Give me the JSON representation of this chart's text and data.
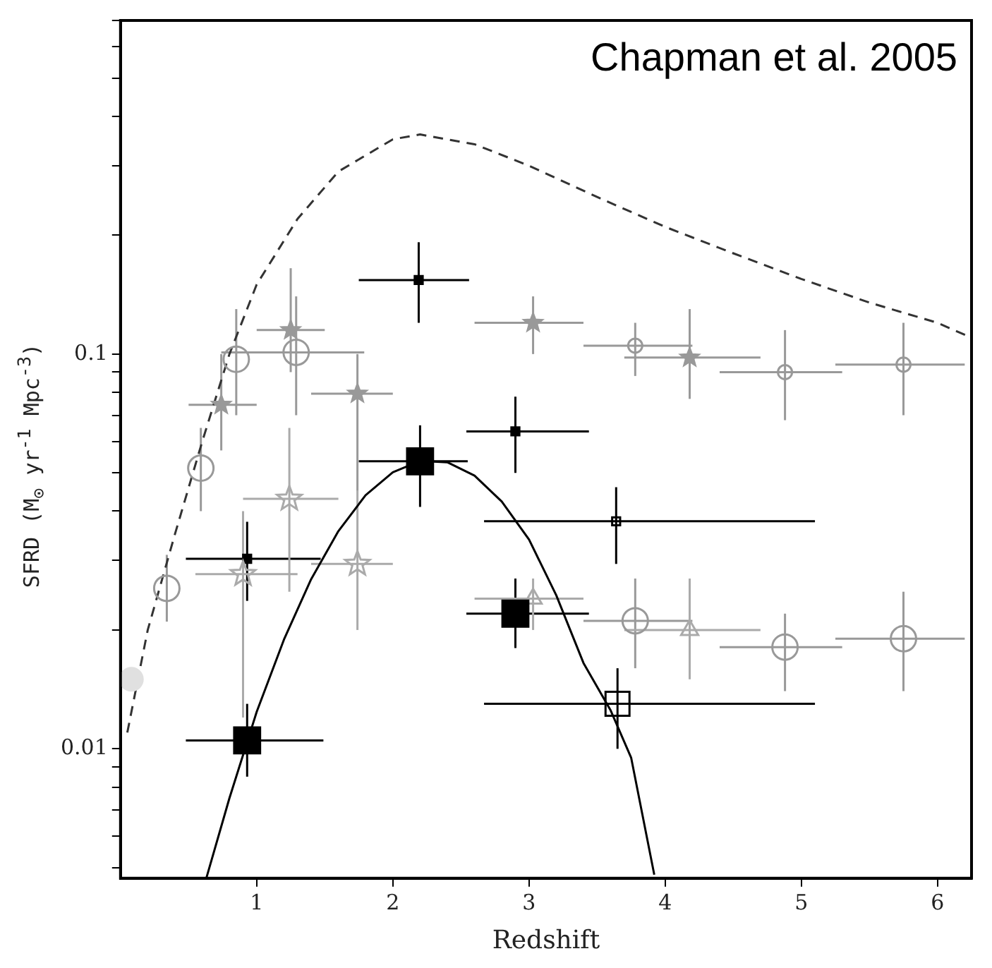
{
  "chart_data": {
    "type": "scatter",
    "xlabel": "Redshift",
    "ylabel": "SFRD (M$_{⊙}$ yr$^{-1}$ Mpc$^{-3}$)",
    "annotations": [
      "Chapman et al. 2005"
    ],
    "log": "y",
    "grid": false,
    "legend": false,
    "xlim": [
      0,
      6.25
    ],
    "ylim": [
      0.0047,
      0.7
    ],
    "xticks": [
      1,
      2,
      3,
      4,
      5,
      6
    ],
    "yticks": [
      {
        "value": 0.005,
        "label": null
      },
      {
        "value": 0.006,
        "label": null
      },
      {
        "value": 0.007,
        "label": null
      },
      {
        "value": 0.008,
        "label": null
      },
      {
        "value": 0.009,
        "label": null
      },
      0.01,
      {
        "value": 0.02,
        "label": null
      },
      {
        "value": 0.03,
        "label": null
      },
      {
        "value": 0.04,
        "label": null
      },
      {
        "value": 0.05,
        "label": null
      },
      {
        "value": 0.06,
        "label": null
      },
      {
        "value": 0.07,
        "label": null
      },
      {
        "value": 0.08,
        "label": null
      },
      {
        "value": 0.09,
        "label": null
      },
      0.1,
      {
        "value": 0.2,
        "label": null
      },
      {
        "value": 0.3,
        "label": null
      },
      {
        "value": 0.4,
        "label": null
      },
      {
        "value": 0.5,
        "label": null
      },
      {
        "value": 0.6,
        "label": null
      },
      {
        "value": 0.7,
        "label": null
      }
    ],
    "series": [
      {
        "color": "#000000",
        "marker": "square",
        "x": [
          0.93,
          2.2,
          2.9
        ],
        "values": [
          0.0105,
          0.0535,
          0.022
        ],
        "errors": [
          [
            0.0085,
            0.013
          ],
          [
            0.041,
            0.066
          ],
          [
            0.018,
            0.027
          ]
        ],
        "xerrors": [
          [
            0.48,
            1.49
          ],
          [
            1.75,
            2.55
          ],
          [
            2.54,
            3.44
          ]
        ]
      },
      {
        "color": "#000000",
        "marker": "square",
        "x": [
          0.93,
          2.19,
          2.9
        ],
        "values": [
          0.0303,
          0.154,
          0.0637
        ],
        "errors": [
          [
            0.0237,
            0.0376
          ],
          [
            0.12,
            0.192
          ],
          [
            0.05,
            0.078
          ]
        ],
        "xerrors": [
          [
            0.48,
            1.47
          ],
          [
            1.75,
            2.56
          ],
          [
            2.54,
            3.44
          ]
        ]
      },
      {
        "color": "#000000",
        "marker": "square",
        "x": [
          3.64
        ],
        "values": [
          0.0377
        ],
        "errors": [
          [
            0.0294,
            0.046
          ]
        ],
        "xerrors": [
          [
            2.67,
            5.1
          ]
        ]
      },
      {
        "color": "#000000",
        "marker": "square",
        "x": [
          3.65
        ],
        "values": [
          0.013
        ],
        "errors": [
          [
            0.01,
            0.016
          ]
        ],
        "xerrors": [
          [
            2.67,
            5.1
          ]
        ]
      },
      {
        "color": "#999999",
        "marker": "circle",
        "x": [
          0.34,
          0.59,
          0.85,
          1.29,
          3.78,
          4.88,
          5.75
        ],
        "values": [
          0.0255,
          0.0514,
          0.097,
          0.101,
          0.0211,
          0.0181,
          0.019
        ],
        "errors": [
          [
            0.021,
            0.031
          ],
          [
            0.04,
            0.065
          ],
          [
            0.07,
            0.13
          ],
          [
            0.07,
            0.14
          ],
          [
            0.016,
            0.027
          ],
          [
            0.014,
            0.022
          ],
          [
            0.014,
            0.025
          ]
        ],
        "xerrors": [
          null,
          null,
          null,
          [
            0.74,
            1.79
          ],
          [
            3.4,
            4.2
          ],
          [
            4.4,
            5.3
          ],
          [
            5.25,
            6.2
          ]
        ]
      },
      {
        "color": "#999999",
        "marker": "circle",
        "x": [
          3.78,
          4.88,
          5.75
        ],
        "values": [
          0.105,
          0.09,
          0.094
        ],
        "errors": [
          [
            0.088,
            0.12
          ],
          [
            0.068,
            0.115
          ],
          [
            0.07,
            0.12
          ]
        ],
        "xerrors": [
          [
            3.4,
            4.2
          ],
          [
            4.4,
            5.3
          ],
          [
            5.25,
            6.2
          ]
        ]
      },
      {
        "color": "#999999",
        "marker": "star",
        "x": [
          0.74,
          1.25,
          1.74,
          3.03,
          4.18
        ],
        "values": [
          0.0744,
          0.115,
          0.0794,
          0.12,
          0.098
        ],
        "errors": [
          [
            0.057,
            0.1
          ],
          [
            0.09,
            0.165
          ],
          [
            0.045,
            0.1
          ],
          [
            0.1,
            0.14
          ],
          [
            0.077,
            0.13
          ]
        ],
        "xerrors": [
          [
            0.5,
            1.0
          ],
          [
            1.0,
            1.5
          ],
          [
            1.4,
            2.0
          ],
          [
            2.6,
            3.4
          ],
          [
            3.7,
            4.7
          ]
        ]
      },
      {
        "color": "#aaaaaa",
        "marker": "star",
        "x": [
          0.9,
          1.24,
          1.74
        ],
        "values": [
          0.0277,
          0.043,
          0.0294
        ],
        "errors": [
          [
            0.012,
            0.04
          ],
          [
            0.025,
            0.065
          ],
          [
            0.02,
            0.045
          ]
        ],
        "xerrors": [
          [
            0.55,
            1.3
          ],
          [
            0.9,
            1.6
          ],
          [
            1.4,
            2.0
          ]
        ]
      },
      {
        "color": "#aaaaaa",
        "marker": "triangle",
        "x": [
          3.03,
          4.18
        ],
        "values": [
          0.024,
          0.02
        ],
        "errors": [
          [
            0.02,
            0.027
          ],
          [
            0.015,
            0.027
          ]
        ],
        "xerrors": [
          [
            2.6,
            3.4
          ],
          [
            3.7,
            4.7
          ]
        ]
      },
      {
        "color": "#e0e0e0",
        "marker": "circle",
        "x": [
          0.08
        ],
        "values": [
          0.015
        ]
      },
      {
        "type": "line",
        "color": "#333333",
        "marker": "none",
        "line_style": "dashed",
        "x": [
          0.05,
          0.2,
          0.4,
          0.6,
          0.8,
          1.0,
          1.3,
          1.6,
          2.0,
          2.2,
          2.6,
          3.0,
          3.5,
          4.0,
          4.5,
          5.0,
          5.5,
          6.0,
          6.25
        ],
        "values": [
          0.011,
          0.02,
          0.035,
          0.06,
          0.1,
          0.15,
          0.22,
          0.29,
          0.35,
          0.36,
          0.34,
          0.3,
          0.25,
          0.21,
          0.18,
          0.155,
          0.135,
          0.12,
          0.11
        ]
      },
      {
        "type": "line",
        "color": "#000000",
        "marker": "none",
        "line_style": "solid",
        "x": [
          0.63,
          0.8,
          1.0,
          1.2,
          1.4,
          1.6,
          1.8,
          2.0,
          2.2,
          2.4,
          2.6,
          2.8,
          3.0,
          3.2,
          3.4,
          3.6,
          3.75,
          3.92
        ],
        "values": [
          0.0047,
          0.0075,
          0.0124,
          0.0189,
          0.0269,
          0.0356,
          0.0439,
          0.0502,
          0.0536,
          0.0532,
          0.0492,
          0.0423,
          0.0339,
          0.0245,
          0.0165,
          0.0125,
          0.0095,
          0.0048
        ]
      }
    ]
  }
}
